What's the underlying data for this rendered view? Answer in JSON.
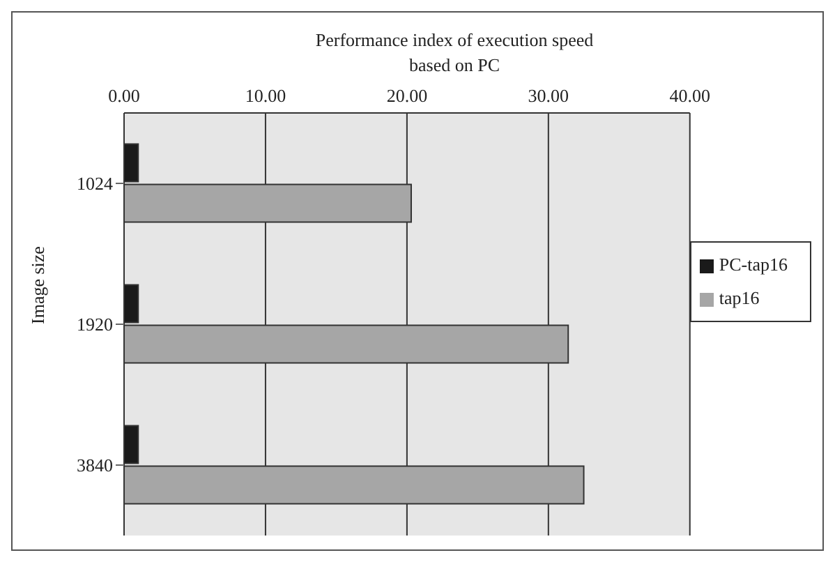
{
  "chart_data": {
    "type": "bar",
    "orientation": "horizontal",
    "xlabel": "Performance index of execution speed based on PC",
    "ylabel": "Image size",
    "categories": [
      "1024",
      "1920",
      "3840"
    ],
    "series": [
      {
        "name": "PC-tap16",
        "color": "#1a1a1a",
        "values": [
          1.0,
          1.0,
          1.0
        ]
      },
      {
        "name": "tap16",
        "color": "#a6a6a6",
        "values": [
          20.3,
          31.4,
          32.5
        ]
      }
    ],
    "xlim": [
      0,
      40
    ],
    "xticks": [
      {
        "value": 0,
        "label": "0.00"
      },
      {
        "value": 10,
        "label": "10.00"
      },
      {
        "value": 20,
        "label": "20.00"
      },
      {
        "value": 30,
        "label": "30.00"
      },
      {
        "value": 40,
        "label": "40.00"
      }
    ],
    "grid": "x",
    "legend": "right"
  }
}
